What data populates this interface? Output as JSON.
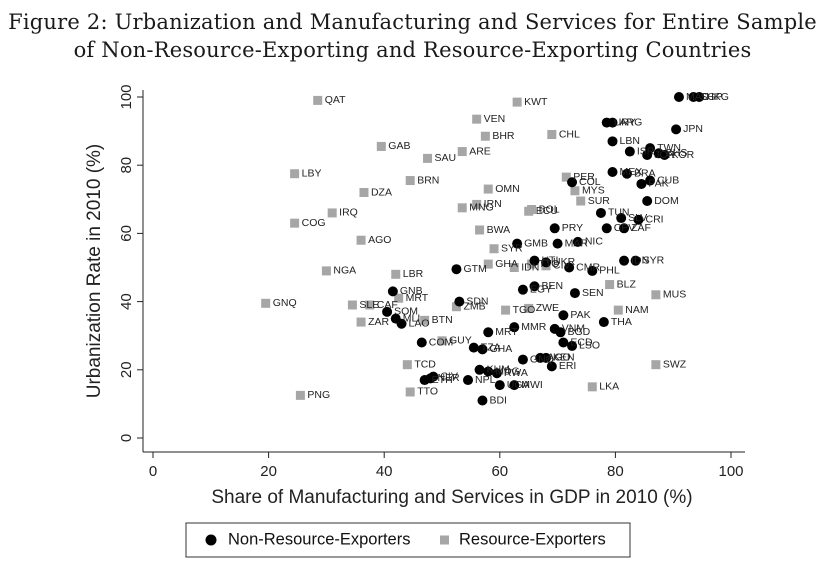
{
  "title": {
    "line1": "Figure 2: Urbanization and Manufacturing and Services for Entire Sample",
    "line2": "of Non-Resource-Exporting and Resource-Exporting Countries"
  },
  "chart_data": {
    "type": "scatter",
    "xlabel": "Share of Manufacturing and Services in GDP in 2010 (%)",
    "ylabel": "Urbanization Rate in 2010 (%)",
    "xlim": [
      0,
      100
    ],
    "ylim": [
      0,
      100
    ],
    "xticks": [
      0,
      20,
      40,
      60,
      80,
      100
    ],
    "yticks": [
      0,
      20,
      40,
      60,
      80,
      100
    ],
    "grid": false,
    "legend_position": "bottom",
    "series": [
      {
        "name": "Non-Resource-Exporters",
        "marker": "circle",
        "color": "#000000",
        "points": [
          {
            "label": "SGP",
            "x": 93.5,
            "y": 100
          },
          {
            "label": "HKG",
            "x": 94.5,
            "y": 100
          },
          {
            "label": "MAC",
            "x": 91,
            "y": 100
          },
          {
            "label": "JPN",
            "x": 90.5,
            "y": 90.5
          },
          {
            "label": "URY",
            "x": 78.5,
            "y": 92.5
          },
          {
            "label": "ARG",
            "x": 79.5,
            "y": 92.5
          },
          {
            "label": "LBN",
            "x": 79.5,
            "y": 87
          },
          {
            "label": "ISR",
            "x": 82.5,
            "y": 84
          },
          {
            "label": "TWN",
            "x": 86,
            "y": 85
          },
          {
            "label": "JOR",
            "x": 85.5,
            "y": 83
          },
          {
            "label": "BHS",
            "x": 87.5,
            "y": 83.5
          },
          {
            "label": "KOR",
            "x": 88.5,
            "y": 83
          },
          {
            "label": "MEX",
            "x": 79.5,
            "y": 78
          },
          {
            "label": "BRA",
            "x": 82,
            "y": 77.5
          },
          {
            "label": "CUB",
            "x": 86,
            "y": 75.5
          },
          {
            "label": "PAK",
            "x": 84.5,
            "y": 74.5
          },
          {
            "label": "COL",
            "x": 72.5,
            "y": 75
          },
          {
            "label": "DOM",
            "x": 85.5,
            "y": 69.5
          },
          {
            "label": "TUN",
            "x": 77.5,
            "y": 66
          },
          {
            "label": "SLV",
            "x": 81,
            "y": 64.5
          },
          {
            "label": "CRI",
            "x": 84,
            "y": 64
          },
          {
            "label": "PRY",
            "x": 69.5,
            "y": 61.5
          },
          {
            "label": "CPV",
            "x": 78.5,
            "y": 61.5
          },
          {
            "label": "ZAF",
            "x": 81.5,
            "y": 61.5
          },
          {
            "label": "GMB",
            "x": 63,
            "y": 57
          },
          {
            "label": "MAR",
            "x": 70,
            "y": 57
          },
          {
            "label": "NIC",
            "x": 73.5,
            "y": 57.5
          },
          {
            "label": "HTI",
            "x": 66,
            "y": 52
          },
          {
            "label": "UKR",
            "x": 68,
            "y": 51.5
          },
          {
            "label": "CMR",
            "x": 72,
            "y": 50
          },
          {
            "label": "PHL",
            "x": 76,
            "y": 49
          },
          {
            "label": "IDN",
            "x": 81.5,
            "y": 52
          },
          {
            "label": "SYR",
            "x": 83.5,
            "y": 52
          },
          {
            "label": "GTM",
            "x": 52.5,
            "y": 49.5
          },
          {
            "label": "BEN",
            "x": 66,
            "y": 44.5
          },
          {
            "label": "EGY",
            "x": 64,
            "y": 43.5
          },
          {
            "label": "SEN",
            "x": 73,
            "y": 42.5
          },
          {
            "label": "GNB",
            "x": 41.5,
            "y": 43
          },
          {
            "label": "SDN",
            "x": 53,
            "y": 40
          },
          {
            "label": "SOM",
            "x": 40.5,
            "y": 37
          },
          {
            "label": "PAK",
            "x": 71,
            "y": 36
          },
          {
            "label": "THA",
            "x": 78,
            "y": 34
          },
          {
            "label": "MLI",
            "x": 42,
            "y": 35
          },
          {
            "label": "LAO",
            "x": 43,
            "y": 33.5
          },
          {
            "label": "MMR",
            "x": 62.5,
            "y": 32.5
          },
          {
            "label": "MRT",
            "x": 58,
            "y": 31
          },
          {
            "label": "VNM",
            "x": 69.5,
            "y": 32
          },
          {
            "label": "BGD",
            "x": 70.5,
            "y": 31
          },
          {
            "label": "COM",
            "x": 46.5,
            "y": 28
          },
          {
            "label": "TZA",
            "x": 55.5,
            "y": 26.5
          },
          {
            "label": "GHA",
            "x": 57,
            "y": 26
          },
          {
            "label": "ECD",
            "x": 71,
            "y": 28
          },
          {
            "label": "LSO",
            "x": 72.5,
            "y": 27
          },
          {
            "label": "AGO",
            "x": 67,
            "y": 23.5
          },
          {
            "label": "KEN",
            "x": 68,
            "y": 23.5
          },
          {
            "label": "GNQ",
            "x": 64,
            "y": 23
          },
          {
            "label": "ERI",
            "x": 69,
            "y": 21
          },
          {
            "label": "KHM",
            "x": 56.5,
            "y": 20
          },
          {
            "label": "MDG",
            "x": 58,
            "y": 19.5
          },
          {
            "label": "RWA",
            "x": 59.5,
            "y": 19
          },
          {
            "label": "CIV",
            "x": 48.5,
            "y": 18
          },
          {
            "label": "NER",
            "x": 48,
            "y": 17.5
          },
          {
            "label": "ETH",
            "x": 47,
            "y": 17
          },
          {
            "label": "NPL",
            "x": 54.5,
            "y": 17
          },
          {
            "label": "UGA",
            "x": 60,
            "y": 15.5
          },
          {
            "label": "MWI",
            "x": 62.5,
            "y": 15.5
          },
          {
            "label": "BDI",
            "x": 57,
            "y": 11
          }
        ]
      },
      {
        "name": "Resource-Exporters",
        "marker": "square",
        "color": "#a6a6a6",
        "points": [
          {
            "label": "QAT",
            "x": 28.5,
            "y": 99
          },
          {
            "label": "KWT",
            "x": 63,
            "y": 98.5
          },
          {
            "label": "VEN",
            "x": 56,
            "y": 93.5
          },
          {
            "label": "BHR",
            "x": 57.5,
            "y": 88.5
          },
          {
            "label": "CHL",
            "x": 69,
            "y": 89
          },
          {
            "label": "GAB",
            "x": 39.5,
            "y": 85.5
          },
          {
            "label": "ARE",
            "x": 53.5,
            "y": 84
          },
          {
            "label": "SAU",
            "x": 47.5,
            "y": 82
          },
          {
            "label": "LBY",
            "x": 24.5,
            "y": 77.5
          },
          {
            "label": "BRN",
            "x": 44.5,
            "y": 75.5
          },
          {
            "label": "DZA",
            "x": 36.5,
            "y": 72
          },
          {
            "label": "PER",
            "x": 71.5,
            "y": 76.5
          },
          {
            "label": "OMN",
            "x": 58,
            "y": 73
          },
          {
            "label": "MYS",
            "x": 73,
            "y": 72.5
          },
          {
            "label": "MNG",
            "x": 53.5,
            "y": 67.5
          },
          {
            "label": "IRN",
            "x": 56,
            "y": 68.5
          },
          {
            "label": "ECU",
            "x": 65,
            "y": 66.5
          },
          {
            "label": "BOL",
            "x": 65.5,
            "y": 67
          },
          {
            "label": "SUR",
            "x": 74,
            "y": 69.5
          },
          {
            "label": "IRQ",
            "x": 31,
            "y": 66
          },
          {
            "label": "COG",
            "x": 24.5,
            "y": 63
          },
          {
            "label": "BWA",
            "x": 56.5,
            "y": 61
          },
          {
            "label": "AGO",
            "x": 36,
            "y": 58
          },
          {
            "label": "SYR",
            "x": 59,
            "y": 55.5
          },
          {
            "label": "GHA",
            "x": 58,
            "y": 51
          },
          {
            "label": "IDN",
            "x": 62.5,
            "y": 50
          },
          {
            "label": "TTO",
            "x": 65.5,
            "y": 51
          },
          {
            "label": "CIV",
            "x": 68,
            "y": 50.5
          },
          {
            "label": "NGA",
            "x": 30,
            "y": 49
          },
          {
            "label": "LBR",
            "x": 42,
            "y": 48
          },
          {
            "label": "BLZ",
            "x": 79,
            "y": 45
          },
          {
            "label": "MUS",
            "x": 87,
            "y": 42
          },
          {
            "label": "MRT",
            "x": 42.5,
            "y": 41
          },
          {
            "label": "GNQ",
            "x": 19.5,
            "y": 39.5
          },
          {
            "label": "SLE",
            "x": 34.5,
            "y": 39
          },
          {
            "label": "CAF",
            "x": 37.5,
            "y": 39
          },
          {
            "label": "ZMB",
            "x": 52.5,
            "y": 38.5
          },
          {
            "label": "TGO",
            "x": 61,
            "y": 37.5
          },
          {
            "label": "ZWE",
            "x": 65,
            "y": 38
          },
          {
            "label": "NAM",
            "x": 80.5,
            "y": 37.5
          },
          {
            "label": "ZAR",
            "x": 36,
            "y": 34
          },
          {
            "label": "BTN",
            "x": 47,
            "y": 34.5
          },
          {
            "label": "GUY",
            "x": 50,
            "y": 28.5
          },
          {
            "label": "TCD",
            "x": 44,
            "y": 21.5
          },
          {
            "label": "SWZ",
            "x": 87,
            "y": 21.5
          },
          {
            "label": "TTO",
            "x": 44.5,
            "y": 13.5
          },
          {
            "label": "LKA",
            "x": 76,
            "y": 15
          },
          {
            "label": "PNG",
            "x": 25.5,
            "y": 12.5
          }
        ]
      }
    ]
  }
}
